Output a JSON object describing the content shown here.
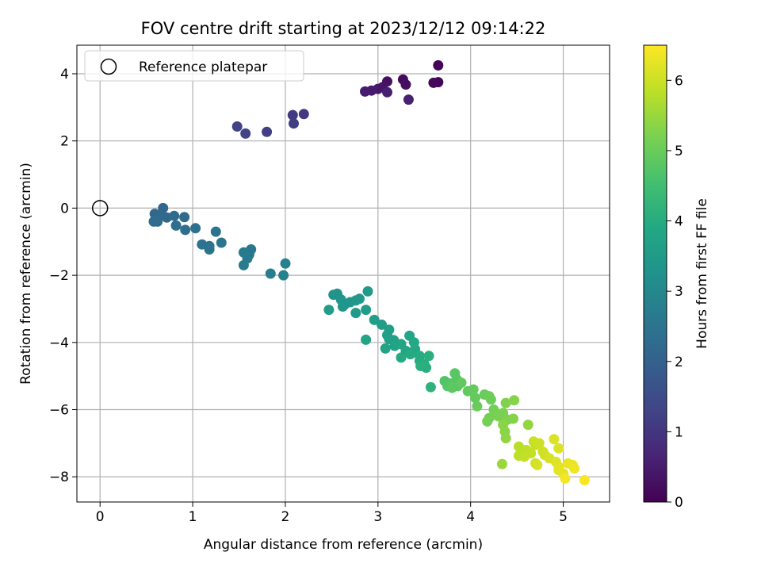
{
  "chart_data": {
    "type": "scatter",
    "title": "FOV centre drift starting at 2023/12/12 09:14:22",
    "xlabel": "Angular distance from reference (arcmin)",
    "ylabel": "Rotation from reference (arcmin)",
    "xlim": [
      -0.25,
      5.5
    ],
    "ylim": [
      -8.75,
      4.85
    ],
    "xticks": [
      "0",
      "1",
      "2",
      "3",
      "4",
      "5"
    ],
    "yticks": [
      "−8",
      "−6",
      "−4",
      "−2",
      "0",
      "2",
      "4"
    ],
    "grid": true,
    "legend_position": "top-left",
    "legend": [
      "Reference platepar"
    ],
    "reference_point": [
      0,
      0
    ],
    "colorbar": {
      "label": "Hours from first FF file",
      "range": [
        0,
        6.5
      ],
      "ticks": [
        "0",
        "1",
        "2",
        "3",
        "4",
        "5",
        "6"
      ],
      "colormap": "viridis"
    },
    "points": [
      [
        3.65,
        4.25,
        0.05
      ],
      [
        3.65,
        3.75,
        0.1
      ],
      [
        3.6,
        3.73,
        0.15
      ],
      [
        3.27,
        3.83,
        0.2
      ],
      [
        3.3,
        3.68,
        0.25
      ],
      [
        3.1,
        3.77,
        0.3
      ],
      [
        3.05,
        3.6,
        0.35
      ],
      [
        3.0,
        3.55,
        0.4
      ],
      [
        2.93,
        3.5,
        0.45
      ],
      [
        2.86,
        3.47,
        0.5
      ],
      [
        3.1,
        3.45,
        0.55
      ],
      [
        3.33,
        3.23,
        0.6
      ],
      [
        2.2,
        2.8,
        1.05
      ],
      [
        2.08,
        2.77,
        1.1
      ],
      [
        2.09,
        2.52,
        1.15
      ],
      [
        1.8,
        2.27,
        1.2
      ],
      [
        1.48,
        2.43,
        1.25
      ],
      [
        1.57,
        2.22,
        1.3
      ],
      [
        0.68,
        0.0,
        2.15
      ],
      [
        0.59,
        -0.17,
        2.15
      ],
      [
        0.65,
        -0.22,
        2.2
      ],
      [
        0.72,
        -0.28,
        2.2
      ],
      [
        0.8,
        -0.23,
        2.25
      ],
      [
        0.91,
        -0.27,
        2.25
      ],
      [
        0.58,
        -0.4,
        2.3
      ],
      [
        0.62,
        -0.4,
        2.3
      ],
      [
        0.82,
        -0.52,
        2.35
      ],
      [
        0.92,
        -0.65,
        2.35
      ],
      [
        1.03,
        -0.6,
        2.4
      ],
      [
        1.1,
        -1.08,
        2.45
      ],
      [
        1.18,
        -1.13,
        2.45
      ],
      [
        1.18,
        -1.23,
        2.5
      ],
      [
        1.25,
        -0.7,
        2.5
      ],
      [
        1.31,
        -1.03,
        2.55
      ],
      [
        1.63,
        -1.23,
        2.6
      ],
      [
        1.61,
        -1.38,
        2.6
      ],
      [
        1.55,
        -1.32,
        2.65
      ],
      [
        1.59,
        -1.5,
        2.65
      ],
      [
        1.55,
        -1.7,
        2.7
      ],
      [
        1.84,
        -1.95,
        2.75
      ],
      [
        1.98,
        -2.0,
        2.8
      ],
      [
        2.0,
        -1.65,
        2.8
      ],
      [
        2.56,
        -2.55,
        3.3
      ],
      [
        2.52,
        -2.58,
        3.3
      ],
      [
        2.6,
        -2.72,
        3.35
      ],
      [
        2.64,
        -2.87,
        3.35
      ],
      [
        2.62,
        -2.93,
        3.4
      ],
      [
        2.7,
        -2.8,
        3.4
      ],
      [
        2.76,
        -2.75,
        3.45
      ],
      [
        2.8,
        -2.7,
        3.45
      ],
      [
        2.89,
        -2.48,
        3.5
      ],
      [
        2.76,
        -3.12,
        3.5
      ],
      [
        2.87,
        -3.03,
        3.55
      ],
      [
        2.47,
        -3.03,
        3.55
      ],
      [
        2.96,
        -3.33,
        3.6
      ],
      [
        3.04,
        -3.47,
        3.6
      ],
      [
        3.12,
        -3.62,
        3.65
      ],
      [
        3.1,
        -3.78,
        3.65
      ],
      [
        3.12,
        -3.9,
        3.7
      ],
      [
        3.17,
        -3.93,
        3.7
      ],
      [
        3.08,
        -4.18,
        3.75
      ],
      [
        3.18,
        -4.1,
        3.75
      ],
      [
        2.87,
        -3.92,
        3.8
      ],
      [
        3.25,
        -4.05,
        3.8
      ],
      [
        3.3,
        -4.25,
        3.85
      ],
      [
        3.34,
        -3.8,
        3.85
      ],
      [
        3.39,
        -4.0,
        3.9
      ],
      [
        3.4,
        -4.2,
        3.9
      ],
      [
        3.35,
        -4.35,
        3.95
      ],
      [
        3.25,
        -4.45,
        3.95
      ],
      [
        3.45,
        -4.4,
        4.0
      ],
      [
        3.45,
        -4.55,
        4.0
      ],
      [
        3.5,
        -4.65,
        4.05
      ],
      [
        3.52,
        -4.75,
        4.05
      ],
      [
        3.46,
        -4.7,
        4.1
      ],
      [
        3.55,
        -4.4,
        4.1
      ],
      [
        3.57,
        -5.33,
        4.15
      ],
      [
        3.72,
        -5.15,
        4.7
      ],
      [
        3.75,
        -5.3,
        4.75
      ],
      [
        3.78,
        -5.22,
        4.75
      ],
      [
        3.83,
        -4.92,
        4.8
      ],
      [
        3.85,
        -5.1,
        4.8
      ],
      [
        3.8,
        -5.35,
        4.85
      ],
      [
        3.86,
        -5.3,
        4.85
      ],
      [
        3.9,
        -5.2,
        4.9
      ],
      [
        3.97,
        -5.45,
        4.9
      ],
      [
        4.03,
        -5.4,
        4.95
      ],
      [
        4.05,
        -5.65,
        4.95
      ],
      [
        4.07,
        -5.9,
        5.0
      ],
      [
        4.15,
        -5.55,
        5.0
      ],
      [
        4.2,
        -5.6,
        5.05
      ],
      [
        4.22,
        -5.7,
        5.05
      ],
      [
        4.25,
        -6.0,
        5.1
      ],
      [
        4.2,
        -6.25,
        5.1
      ],
      [
        4.18,
        -6.35,
        5.15
      ],
      [
        4.26,
        -6.15,
        5.15
      ],
      [
        4.3,
        -6.2,
        5.2
      ],
      [
        4.35,
        -6.1,
        5.2
      ],
      [
        4.38,
        -5.8,
        5.25
      ],
      [
        4.4,
        -6.3,
        5.25
      ],
      [
        4.46,
        -6.27,
        5.3
      ],
      [
        4.47,
        -5.72,
        5.3
      ],
      [
        4.35,
        -6.45,
        5.35
      ],
      [
        4.37,
        -6.65,
        5.35
      ],
      [
        4.38,
        -6.85,
        5.4
      ],
      [
        4.62,
        -6.45,
        5.45
      ],
      [
        4.34,
        -7.62,
        5.5
      ],
      [
        4.52,
        -7.1,
        5.8
      ],
      [
        4.52,
        -7.37,
        5.85
      ],
      [
        4.6,
        -7.2,
        5.85
      ],
      [
        4.58,
        -7.4,
        5.9
      ],
      [
        4.65,
        -7.3,
        5.9
      ],
      [
        4.68,
        -6.95,
        5.95
      ],
      [
        4.7,
        -7.05,
        5.95
      ],
      [
        4.74,
        -7.0,
        6.0
      ],
      [
        4.78,
        -7.25,
        6.0
      ],
      [
        4.8,
        -7.35,
        6.05
      ],
      [
        4.7,
        -7.6,
        6.05
      ],
      [
        4.72,
        -7.65,
        6.1
      ],
      [
        4.85,
        -7.45,
        6.1
      ],
      [
        4.9,
        -6.88,
        6.15
      ],
      [
        4.95,
        -7.15,
        6.15
      ],
      [
        4.92,
        -7.55,
        6.2
      ],
      [
        4.95,
        -7.7,
        6.2
      ],
      [
        4.95,
        -7.8,
        6.25
      ],
      [
        5.0,
        -7.9,
        6.25
      ],
      [
        5.05,
        -7.6,
        6.3
      ],
      [
        5.1,
        -7.65,
        6.3
      ],
      [
        5.12,
        -7.75,
        6.35
      ],
      [
        5.02,
        -8.05,
        6.4
      ],
      [
        5.23,
        -8.1,
        6.45
      ]
    ]
  }
}
